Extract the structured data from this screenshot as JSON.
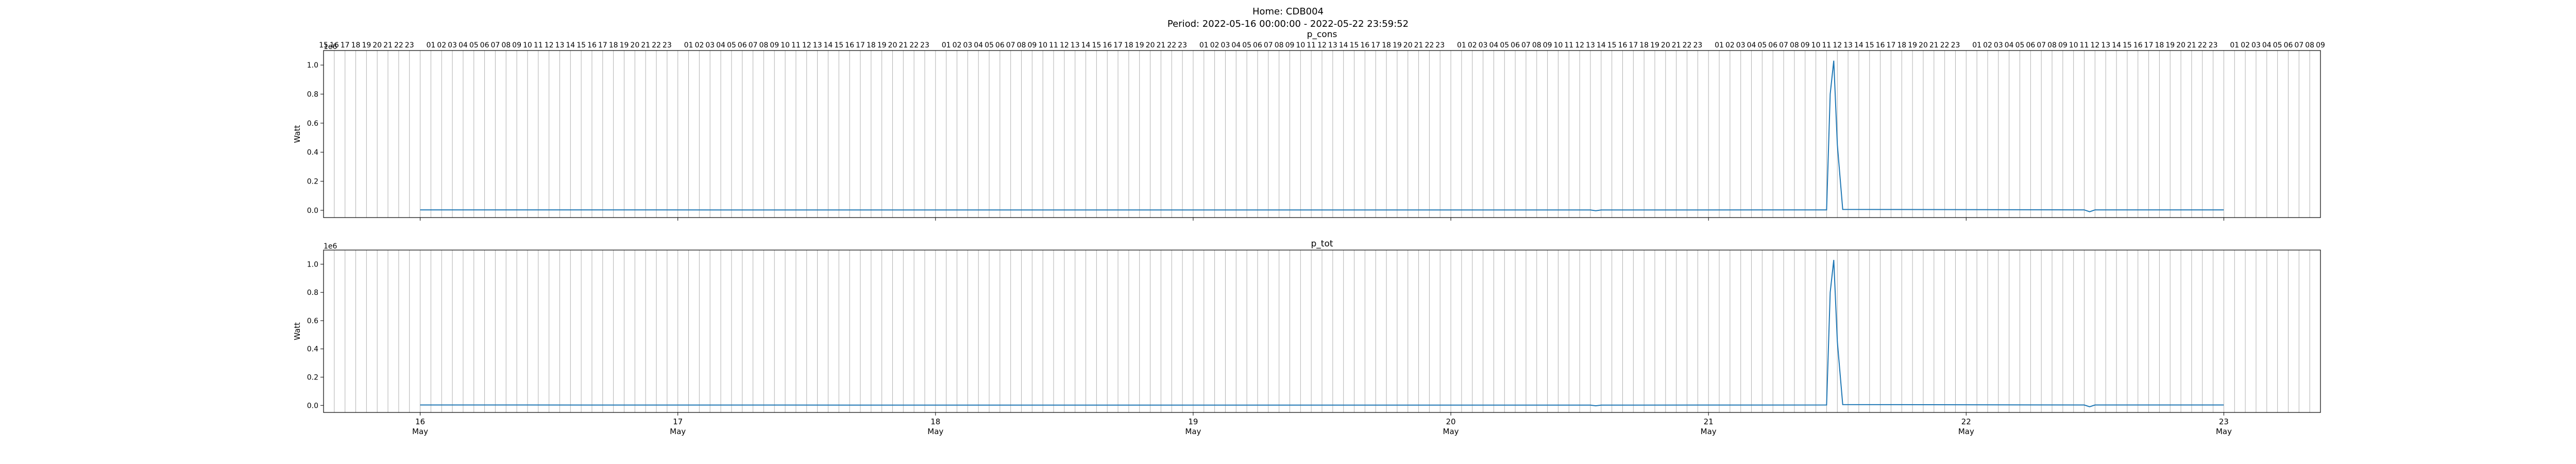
{
  "suptitle": {
    "line1": "Home: CDB004",
    "line2": "Period: 2022-05-16 00:00:00 - 2022-05-22 23:59:52"
  },
  "chart_data": [
    {
      "type": "line",
      "title": "p_cons",
      "ylabel": "Watt",
      "y_multiplier": "1e6",
      "xlim": [
        "2022-05-15 15:00",
        "2022-05-23 09:00"
      ],
      "ylim": [
        -0.05,
        1.1
      ],
      "yticks": [
        0.0,
        0.2,
        0.4,
        0.6,
        0.8,
        1.0
      ],
      "grid": "vertical hourly lines",
      "legend": "none",
      "color": "#1f77b4",
      "series": [
        {
          "x": [
            "2022-05-16 00:00",
            "2022-05-18 12:00",
            "2022-05-20 13:00",
            "2022-05-20 13:30",
            "2022-05-20 14:00",
            "2022-05-21 11:00",
            "2022-05-21 11:20",
            "2022-05-21 11:40",
            "2022-05-21 12:00",
            "2022-05-21 12:30",
            "2022-05-22 11:00",
            "2022-05-22 11:30",
            "2022-05-22 12:00",
            "2022-05-22 23:59"
          ],
          "values": [
            0.003,
            0.002,
            0.002,
            -0.003,
            0.002,
            0.003,
            0.8,
            1.03,
            0.45,
            0.006,
            0.003,
            -0.01,
            0.003,
            0.003
          ]
        }
      ]
    },
    {
      "type": "line",
      "title": "p_tot",
      "ylabel": "Watt",
      "y_multiplier": "1e6",
      "xlim": [
        "2022-05-15 15:00",
        "2022-05-23 09:00"
      ],
      "ylim": [
        -0.05,
        1.1
      ],
      "yticks": [
        0.0,
        0.2,
        0.4,
        0.6,
        0.8,
        1.0
      ],
      "grid": "vertical hourly lines",
      "legend": "none",
      "color": "#1f77b4",
      "series": [
        {
          "x": [
            "2022-05-16 00:00",
            "2022-05-18 12:00",
            "2022-05-20 13:00",
            "2022-05-20 13:30",
            "2022-05-20 14:00",
            "2022-05-21 11:00",
            "2022-05-21 11:20",
            "2022-05-21 11:40",
            "2022-05-21 12:00",
            "2022-05-21 12:30",
            "2022-05-22 11:00",
            "2022-05-22 11:30",
            "2022-05-22 12:00",
            "2022-05-22 23:59"
          ],
          "values": [
            0.003,
            0.002,
            0.002,
            -0.003,
            0.002,
            0.003,
            0.8,
            1.03,
            0.45,
            0.006,
            0.003,
            -0.01,
            0.003,
            0.003
          ]
        }
      ]
    }
  ],
  "x_axis": {
    "day_ticks": [
      "2022-05-16",
      "2022-05-17",
      "2022-05-18",
      "2022-05-19",
      "2022-05-20",
      "2022-05-21",
      "2022-05-22",
      "2022-05-23"
    ],
    "day_labels": [
      "16",
      "17",
      "18",
      "19",
      "20",
      "21",
      "22",
      "23"
    ],
    "month_labels": [
      "May",
      "May",
      "May",
      "May",
      "May",
      "May",
      "May",
      "May"
    ],
    "hour_tick_format": "HH",
    "hour_label_skip": "00"
  }
}
